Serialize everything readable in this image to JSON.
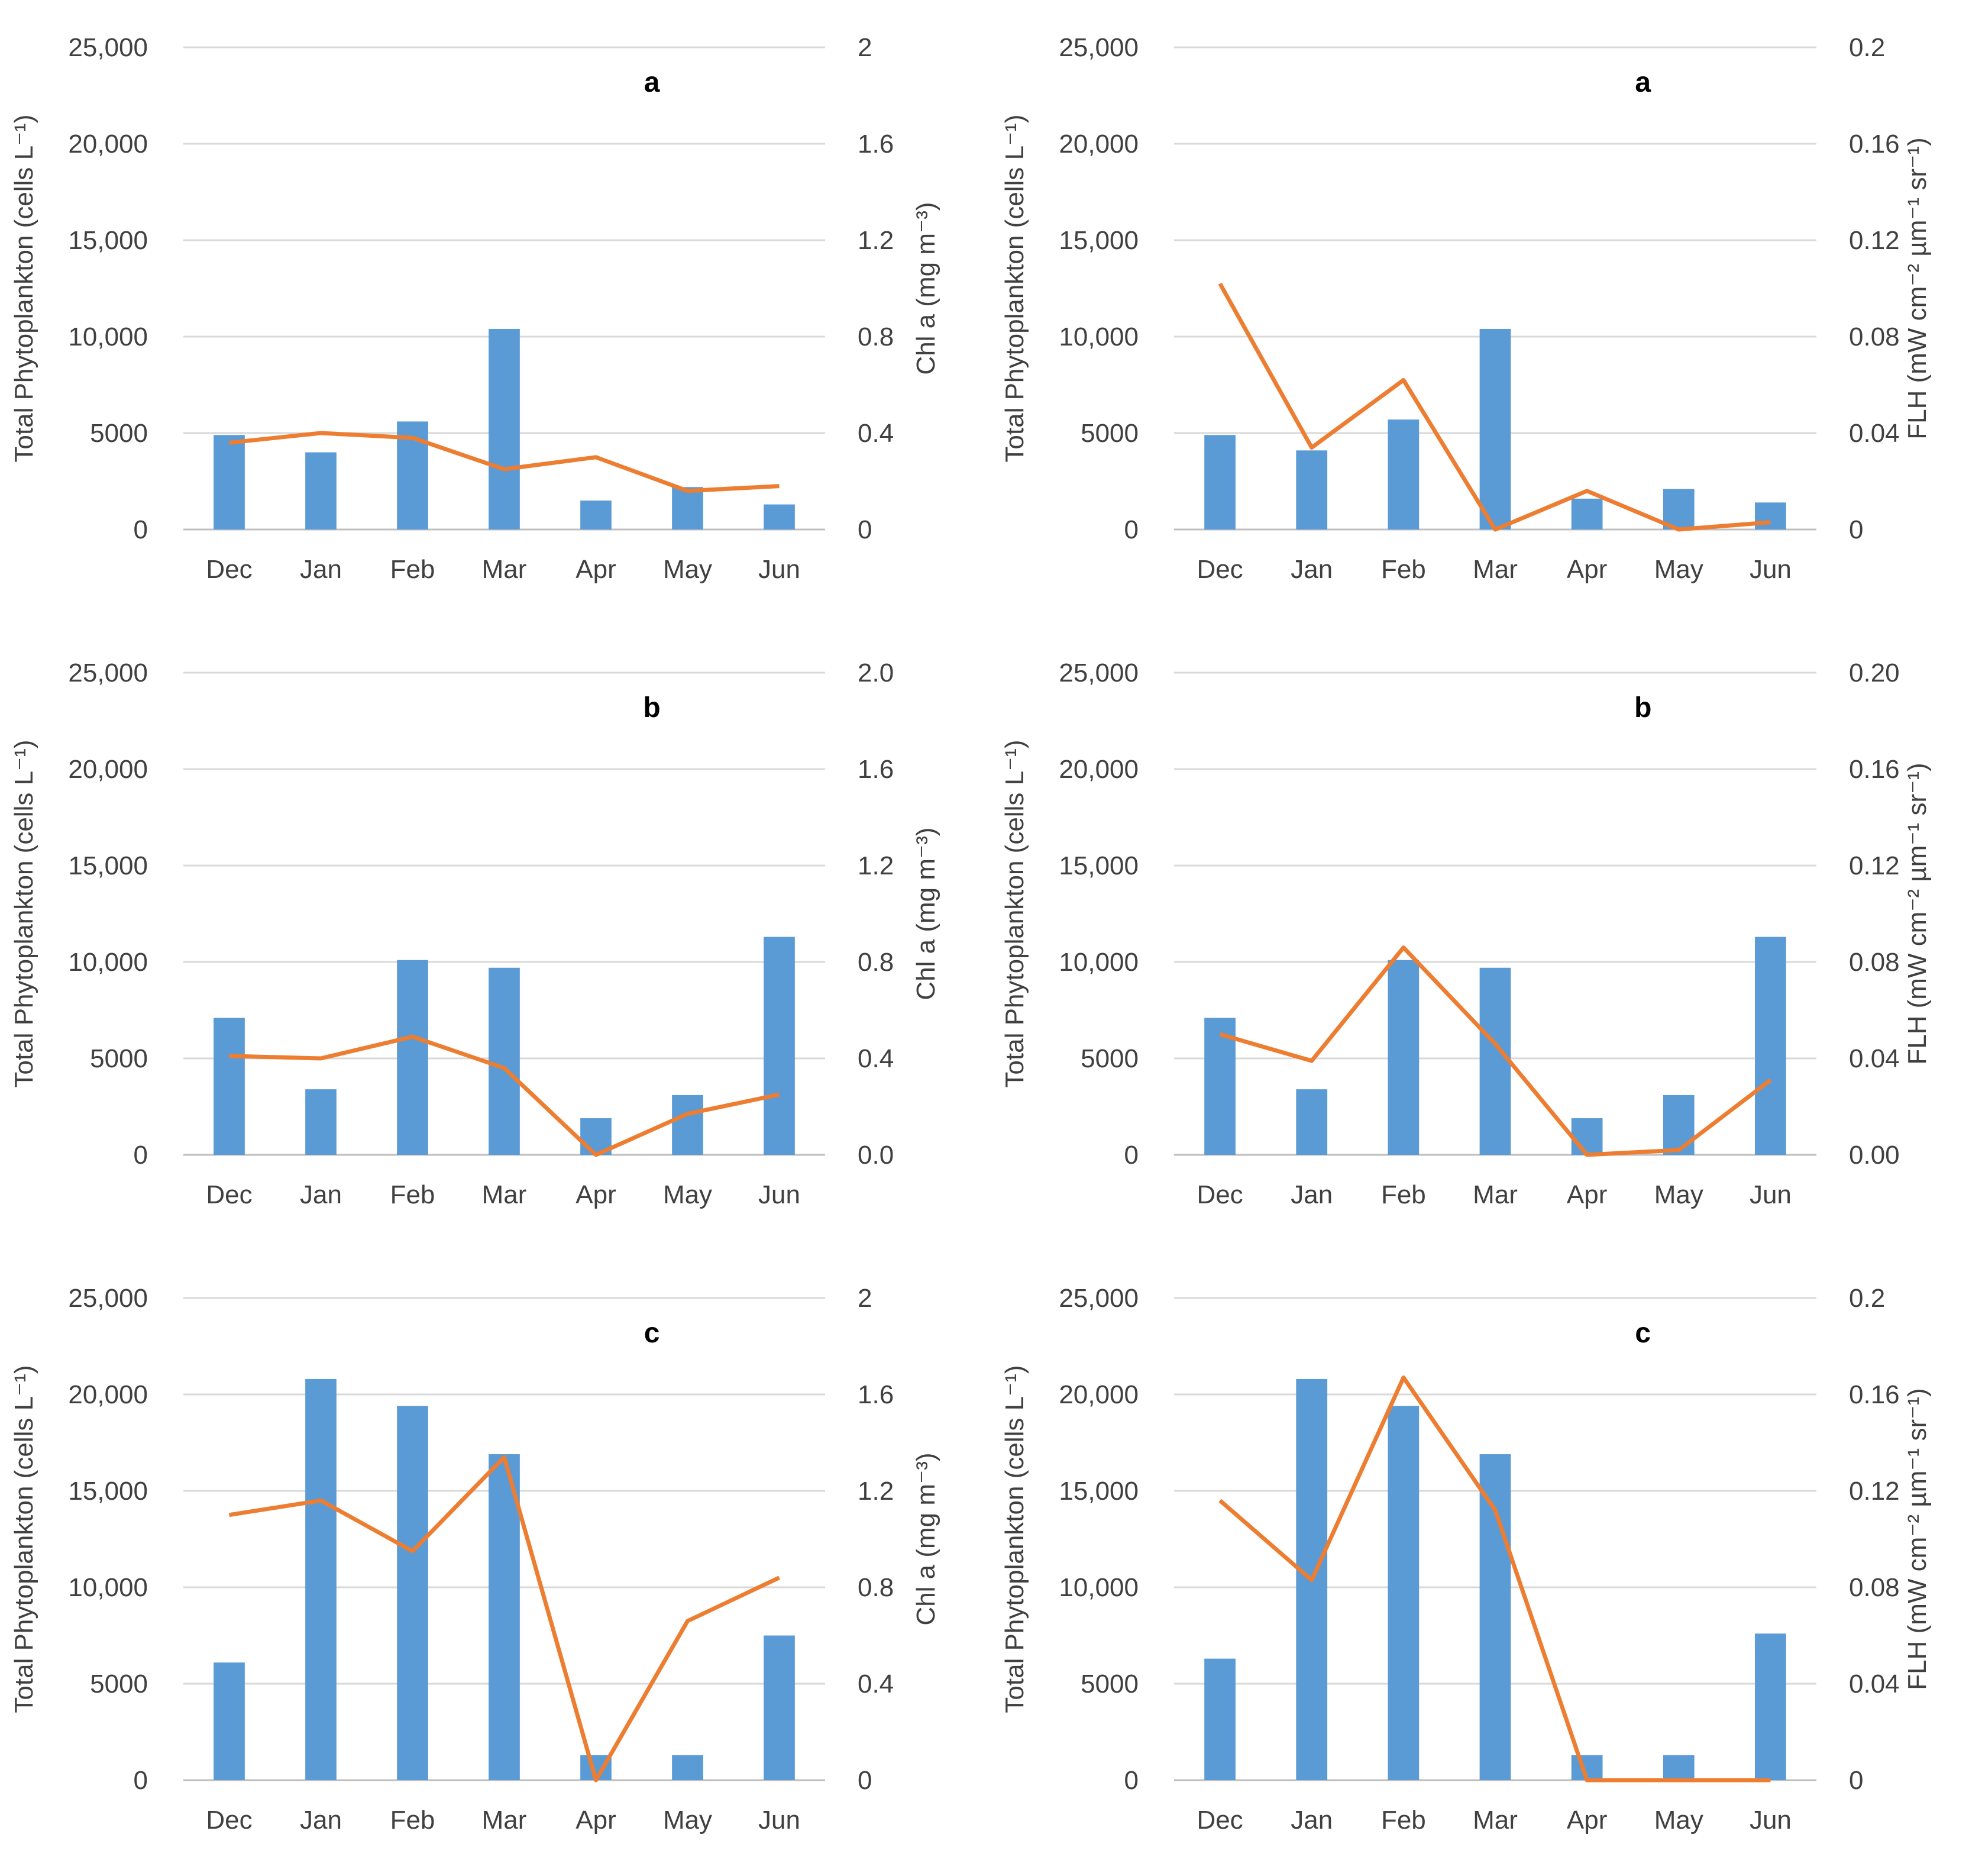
{
  "chart_data": [
    {
      "type": "bar+line",
      "title": "a",
      "categories": [
        "Dec",
        "Jan",
        "Feb",
        "Mar",
        "Apr",
        "May",
        "Jun"
      ],
      "ylabel": "Total Phytoplankton (cells L⁻¹)",
      "ylim": [
        0,
        25000
      ],
      "yticks": [
        "0",
        "5000",
        "10,000",
        "15,000",
        "20,000",
        "25,000"
      ],
      "y2label": "Chl a (mg m⁻³)",
      "y2lim": [
        0,
        2
      ],
      "y2ticks": [
        "0",
        "0.4",
        "0.8",
        "1.2",
        "1.6",
        "2"
      ],
      "series": [
        {
          "name": "Total Phytoplankton",
          "kind": "bar",
          "axis": "left",
          "color": "#5b9bd5",
          "values": [
            4900,
            4000,
            5600,
            10400,
            1500,
            2200,
            1300
          ]
        },
        {
          "name": "Chl a",
          "kind": "line",
          "axis": "right",
          "color": "#ed7d31",
          "values": [
            0.36,
            0.4,
            0.38,
            0.25,
            0.3,
            0.16,
            0.18
          ]
        }
      ]
    },
    {
      "type": "bar+line",
      "title": "a",
      "categories": [
        "Dec",
        "Jan",
        "Feb",
        "Mar",
        "Apr",
        "May",
        "Jun"
      ],
      "ylabel": "Total Phytoplankton (cells L⁻¹)",
      "ylim": [
        0,
        25000
      ],
      "yticks": [
        "0",
        "5000",
        "10,000",
        "15,000",
        "20,000",
        "25,000"
      ],
      "y2label": "FLH (mW cm⁻² µm⁻¹ sr⁻¹)",
      "y2lim": [
        0,
        0.2
      ],
      "y2ticks": [
        "0",
        "0.04",
        "0.08",
        "0.12",
        "0.16",
        "0.2"
      ],
      "series": [
        {
          "name": "Total Phytoplankton",
          "kind": "bar",
          "axis": "left",
          "color": "#5b9bd5",
          "values": [
            4900,
            4100,
            5700,
            10400,
            1600,
            2100,
            1400
          ]
        },
        {
          "name": "FLH",
          "kind": "line",
          "axis": "right",
          "color": "#ed7d31",
          "values": [
            0.102,
            0.034,
            0.062,
            0.0,
            0.016,
            0.0,
            0.003
          ]
        }
      ]
    },
    {
      "type": "bar+line",
      "title": "b",
      "categories": [
        "Dec",
        "Jan",
        "Feb",
        "Mar",
        "Apr",
        "May",
        "Jun"
      ],
      "ylabel": "Total Phytoplankton (cells L⁻¹)",
      "ylim": [
        0,
        25000
      ],
      "yticks": [
        "0",
        "5000",
        "10,000",
        "15,000",
        "20,000",
        "25,000"
      ],
      "y2label": "Chl a (mg m⁻³)",
      "y2lim": [
        0,
        2
      ],
      "y2ticks": [
        "0.0",
        "0.4",
        "0.8",
        "1.2",
        "1.6",
        "2.0"
      ],
      "series": [
        {
          "name": "Total Phytoplankton",
          "kind": "bar",
          "axis": "left",
          "color": "#5b9bd5",
          "values": [
            7100,
            3400,
            10100,
            9700,
            1900,
            3100,
            11300
          ]
        },
        {
          "name": "Chl a",
          "kind": "line",
          "axis": "right",
          "color": "#ed7d31",
          "values": [
            0.41,
            0.4,
            0.49,
            0.36,
            0.0,
            0.17,
            0.25
          ]
        }
      ]
    },
    {
      "type": "bar+line",
      "title": "b",
      "categories": [
        "Dec",
        "Jan",
        "Feb",
        "Mar",
        "Apr",
        "May",
        "Jun"
      ],
      "ylabel": "Total Phytoplankton (cells L⁻¹)",
      "ylim": [
        0,
        25000
      ],
      "yticks": [
        "0",
        "5000",
        "10,000",
        "15,000",
        "20,000",
        "25,000"
      ],
      "y2label": "FLH (mW cm⁻² µm⁻¹ sr⁻¹)",
      "y2lim": [
        0,
        0.2
      ],
      "y2ticks": [
        "0.00",
        "0.04",
        "0.08",
        "0.12",
        "0.16",
        "0.20"
      ],
      "series": [
        {
          "name": "Total Phytoplankton",
          "kind": "bar",
          "axis": "left",
          "color": "#5b9bd5",
          "values": [
            7100,
            3400,
            10100,
            9700,
            1900,
            3100,
            11300
          ]
        },
        {
          "name": "FLH",
          "kind": "line",
          "axis": "right",
          "color": "#ed7d31",
          "values": [
            0.05,
            0.039,
            0.086,
            0.046,
            0.0,
            0.002,
            0.031
          ]
        }
      ]
    },
    {
      "type": "bar+line",
      "title": "c",
      "categories": [
        "Dec",
        "Jan",
        "Feb",
        "Mar",
        "Apr",
        "May",
        "Jun"
      ],
      "ylabel": "Total Phytoplankton (cells L⁻¹)",
      "ylim": [
        0,
        25000
      ],
      "yticks": [
        "0",
        "5000",
        "10,000",
        "15,000",
        "20,000",
        "25,000"
      ],
      "y2label": "Chl a (mg m⁻³)",
      "y2lim": [
        0,
        2
      ],
      "y2ticks": [
        "0",
        "0.4",
        "0.8",
        "1.2",
        "1.6",
        "2"
      ],
      "series": [
        {
          "name": "Total Phytoplankton",
          "kind": "bar",
          "axis": "left",
          "color": "#5b9bd5",
          "values": [
            6100,
            20800,
            19400,
            16900,
            1300,
            1300,
            7500
          ]
        },
        {
          "name": "Chl a",
          "kind": "line",
          "axis": "right",
          "color": "#ed7d31",
          "values": [
            1.1,
            1.16,
            0.95,
            1.34,
            0.0,
            0.66,
            0.84
          ]
        }
      ]
    },
    {
      "type": "bar+line",
      "title": "c",
      "categories": [
        "Dec",
        "Jan",
        "Feb",
        "Mar",
        "Apr",
        "May",
        "Jun"
      ],
      "ylabel": "Total Phytoplankton (cells L⁻¹)",
      "ylim": [
        0,
        25000
      ],
      "yticks": [
        "0",
        "5000",
        "10,000",
        "15,000",
        "20,000",
        "25,000"
      ],
      "y2label": "FLH (mW cm⁻² µm⁻¹ sr⁻¹)",
      "y2lim": [
        0,
        0.2
      ],
      "y2ticks": [
        "0",
        "0.04",
        "0.08",
        "0.12",
        "0.16",
        "0.2"
      ],
      "series": [
        {
          "name": "Total Phytoplankton",
          "kind": "bar",
          "axis": "left",
          "color": "#5b9bd5",
          "values": [
            6300,
            20800,
            19400,
            16900,
            1300,
            1300,
            7600
          ]
        },
        {
          "name": "FLH",
          "kind": "line",
          "axis": "right",
          "color": "#ed7d31",
          "values": [
            0.116,
            0.083,
            0.167,
            0.112,
            0.0,
            0.0,
            0.0
          ]
        }
      ]
    }
  ]
}
